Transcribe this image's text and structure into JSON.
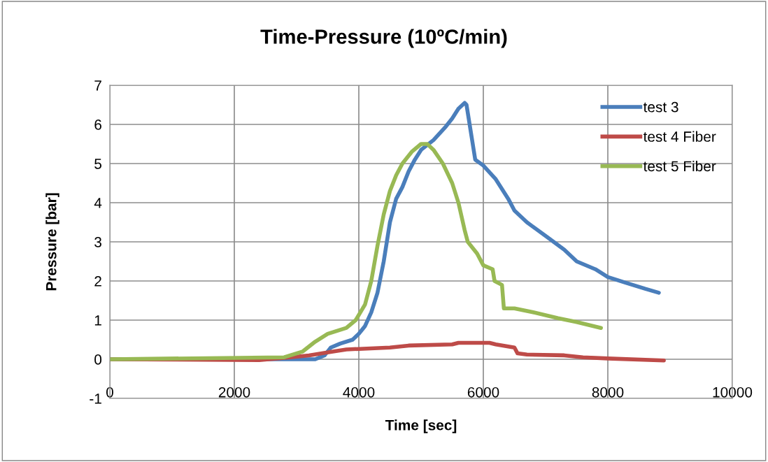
{
  "chart_data": {
    "type": "line",
    "title": "Time-Pressure (10ºC/min)",
    "xlabel": "Time [sec]",
    "ylabel": "Pressure [bar]",
    "xlim": [
      0,
      10000
    ],
    "xticks": [
      0,
      2000,
      4000,
      6000,
      8000,
      10000
    ],
    "ylim": [
      -1,
      7
    ],
    "yticks": [
      -1,
      0,
      1,
      2,
      3,
      4,
      5,
      6,
      7
    ],
    "grid": true,
    "legend": "top right",
    "marker": "none",
    "line_style": "solid",
    "series": [
      {
        "name": "test 3",
        "color": "#4a7ebb",
        "x": [
          0,
          2000,
          3300,
          3450,
          3550,
          3700,
          3900,
          4000,
          4100,
          4200,
          4300,
          4400,
          4500,
          4600,
          4700,
          4800,
          4900,
          5000,
          5200,
          5400,
          5500,
          5600,
          5700,
          5730,
          5780,
          5820,
          5870,
          6000,
          6200,
          6400,
          6500,
          6700,
          7000,
          7300,
          7500,
          7800,
          8000,
          8300,
          8600,
          8820
        ],
        "values": [
          0,
          0,
          0,
          0.1,
          0.3,
          0.4,
          0.5,
          0.65,
          0.85,
          1.2,
          1.7,
          2.5,
          3.5,
          4.1,
          4.4,
          4.8,
          5.1,
          5.35,
          5.6,
          5.95,
          6.15,
          6.4,
          6.55,
          6.5,
          6.0,
          5.6,
          5.1,
          4.95,
          4.6,
          4.1,
          3.8,
          3.5,
          3.15,
          2.8,
          2.5,
          2.3,
          2.1,
          1.95,
          1.8,
          1.7
        ]
      },
      {
        "name": "test 4 Fiber",
        "color": "#be4b48",
        "x": [
          0,
          2400,
          2900,
          3200,
          3600,
          3800,
          4500,
          4800,
          5500,
          5600,
          6100,
          6200,
          6500,
          6550,
          6700,
          7300,
          7600,
          8000,
          8900
        ],
        "values": [
          0,
          -0.02,
          0.05,
          0.1,
          0.2,
          0.25,
          0.3,
          0.35,
          0.38,
          0.42,
          0.42,
          0.38,
          0.3,
          0.15,
          0.12,
          0.1,
          0.05,
          0.02,
          -0.03
        ]
      },
      {
        "name": "test 5 Fiber",
        "color": "#98b954",
        "x": [
          0,
          2800,
          3100,
          3300,
          3500,
          3800,
          3950,
          4100,
          4200,
          4300,
          4400,
          4500,
          4600,
          4700,
          4850,
          5000,
          5100,
          5200,
          5350,
          5500,
          5600,
          5700,
          5750,
          5900,
          6000,
          6150,
          6180,
          6300,
          6330,
          6500,
          6800,
          7200,
          7500,
          7890
        ],
        "values": [
          0,
          0.05,
          0.2,
          0.45,
          0.65,
          0.8,
          1.0,
          1.4,
          2.0,
          2.9,
          3.7,
          4.3,
          4.7,
          5.0,
          5.3,
          5.5,
          5.5,
          5.35,
          5.0,
          4.5,
          4.0,
          3.3,
          3.0,
          2.7,
          2.4,
          2.3,
          2.0,
          1.9,
          1.3,
          1.3,
          1.2,
          1.05,
          0.95,
          0.8
        ]
      }
    ]
  }
}
